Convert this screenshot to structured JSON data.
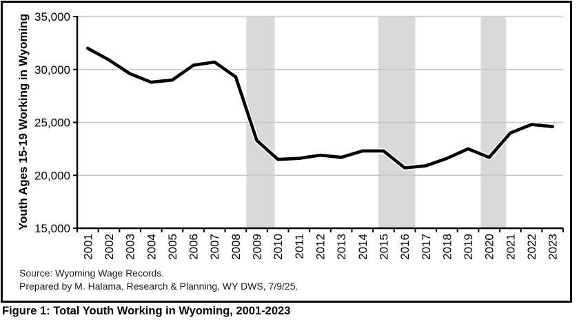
{
  "figure": {
    "caption": "Figure 1: Total Youth Working in Wyoming, 2001-2023"
  },
  "chart": {
    "y_axis_title": "Youth Ages 15-19 Working in Wyoming",
    "source_line_1": "Source: Wyoming Wage Records.",
    "source_line_2": "Prepared by M. Halama, Research & Planning, WY DWS, 7/9/25.",
    "colors": {
      "line": "#000000",
      "line_casing": "#ffffff",
      "gridline": "#c6c6c6",
      "recession_band": "#d9d9d9",
      "axis": "#000000",
      "frame_border": "#000000"
    }
  },
  "chart_data": {
    "type": "line",
    "title": "",
    "xlabel": "",
    "ylabel": "Youth Ages 15-19 Working in Wyoming",
    "x": [
      2001,
      2002,
      2003,
      2004,
      2005,
      2006,
      2007,
      2008,
      2009,
      2010,
      2011,
      2012,
      2013,
      2014,
      2015,
      2016,
      2017,
      2018,
      2019,
      2020,
      2021,
      2022,
      2023
    ],
    "values": [
      32000,
      30900,
      29600,
      28800,
      29000,
      30400,
      30700,
      29300,
      23300,
      21500,
      21600,
      21900,
      21700,
      22300,
      22300,
      20700,
      20900,
      21600,
      22500,
      21700,
      24000,
      24800,
      24600
    ],
    "ylim": [
      15000,
      35000
    ],
    "yticks": [
      15000,
      20000,
      25000,
      30000,
      35000
    ],
    "ytick_labels": [
      "15,000",
      "20,000",
      "25,000",
      "30,000",
      "35,000"
    ],
    "grid": true,
    "legend": false,
    "recession_bands": [
      {
        "start": 2008.5,
        "end": 2009.85
      },
      {
        "start": 2014.75,
        "end": 2016.5
      },
      {
        "start": 2019.6,
        "end": 2020.8
      }
    ]
  }
}
